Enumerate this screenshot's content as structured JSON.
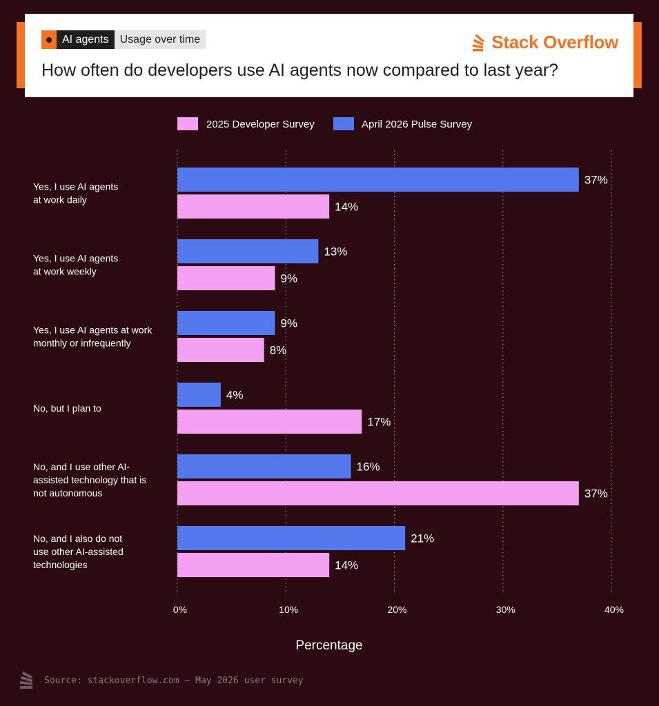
{
  "header": {
    "tag_primary": "AI agents",
    "tag_secondary": "Usage over time",
    "brand": "Stack Overflow",
    "title": "How often do developers use AI agents now compared to last year?"
  },
  "footer": {
    "source": "Source: stackoverflow.com — May 2026 user survey"
  },
  "colors": {
    "background": "#2b0a12",
    "accent": "#f47321",
    "series_2025": "#f3a0f3",
    "series_2026": "#5479ee"
  },
  "chart_data": {
    "type": "bar",
    "orientation": "horizontal",
    "categories": [
      [
        "Yes, I use AI agents",
        "at work daily"
      ],
      [
        "Yes, I use AI agents",
        "at work weekly"
      ],
      [
        "Yes, I use AI agents at work",
        "monthly or infrequently"
      ],
      [
        "No, but I plan to"
      ],
      [
        "No, and I use other AI-",
        "assisted technology that is",
        "not autonomous"
      ],
      [
        "No, and I also do not",
        "use other AI-assisted",
        "technologies"
      ]
    ],
    "series": [
      {
        "name": "2025 Developer Survey",
        "color": "#f3a0f3",
        "values": [
          14,
          9,
          8,
          17,
          37,
          14
        ],
        "labels": [
          "14%",
          "9%",
          "8%",
          "17%",
          "37%",
          "14%"
        ]
      },
      {
        "name": "April 2026 Pulse Survey",
        "color": "#5479ee",
        "values": [
          37,
          13,
          9,
          4,
          16,
          21
        ],
        "labels": [
          "37%",
          "13%",
          "9%",
          "4%",
          "16%",
          "21%"
        ]
      }
    ],
    "xlabel": "Percentage",
    "xlim": [
      0,
      40
    ],
    "xticks": [
      0,
      10,
      20,
      30,
      40
    ],
    "xtick_labels": [
      "0%",
      "10%",
      "20%",
      "30%",
      "40%"
    ],
    "grid": true,
    "legend": "top-center"
  }
}
